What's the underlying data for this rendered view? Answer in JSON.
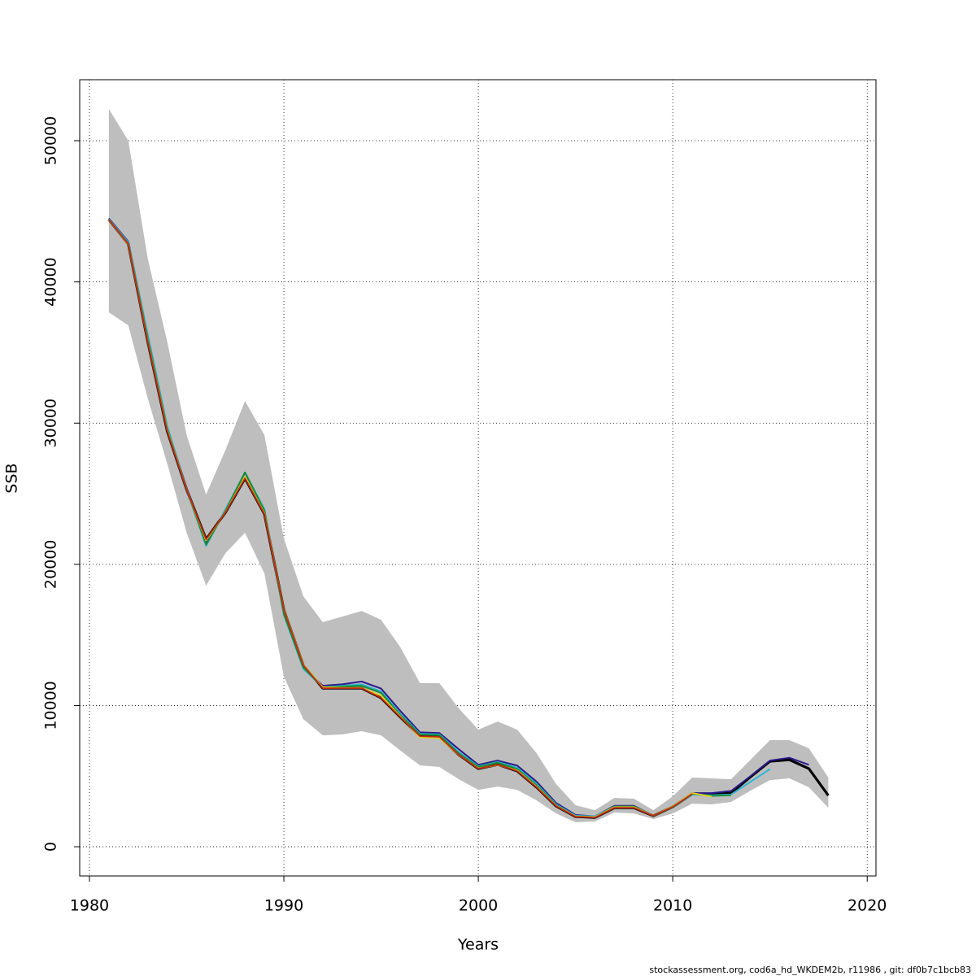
{
  "chart_data": {
    "type": "line",
    "x_label": "Years",
    "y_label": "SSB",
    "footnote": "stockassessment.org, cod6a_hd_WKDEM2b, r11986 , git: df0b7c1bcb83",
    "x": [
      1981,
      1982,
      1983,
      1984,
      1985,
      1986,
      1987,
      1988,
      1989,
      1990,
      1991,
      1992,
      1993,
      1994,
      1995,
      1996,
      1997,
      1998,
      1999,
      2000,
      2001,
      2002,
      2003,
      2004,
      2005,
      2006,
      2007,
      2008,
      2009,
      2010,
      2011,
      2012,
      2013,
      2014,
      2015,
      2016,
      2017,
      2018
    ],
    "band": {
      "color": "#bebebe",
      "upper": [
        52250,
        50000,
        41650,
        35770,
        29150,
        24940,
        28110,
        31570,
        29150,
        21830,
        17740,
        15900,
        16300,
        16700,
        16070,
        14110,
        11580,
        11580,
        9790,
        8290,
        8870,
        8290,
        6620,
        4440,
        2940,
        2590,
        3460,
        3400,
        2590,
        3570,
        4900,
        4840,
        4780,
        6160,
        7550,
        7550,
        6970,
        4900
      ],
      "lower": [
        37850,
        36920,
        31740,
        27130,
        22240,
        18490,
        20800,
        22240,
        19350,
        12040,
        9040,
        7890,
        7950,
        8180,
        7890,
        6800,
        5760,
        5650,
        4780,
        4030,
        4260,
        4030,
        3280,
        2360,
        1730,
        1790,
        2420,
        2360,
        1960,
        2360,
        3050,
        3000,
        3170,
        3970,
        4720,
        4840,
        4210,
        2760
      ]
    },
    "series": [
      {
        "color": "#000000",
        "values": [
          44410,
          42680,
          35770,
          29440,
          25290,
          21770,
          23680,
          26090,
          23560,
          16760,
          12850,
          11230,
          11230,
          11230,
          10540,
          9160,
          7830,
          7780,
          6510,
          5530,
          5820,
          5360,
          4210,
          2880,
          2130,
          2070,
          2760,
          2760,
          2190,
          2820,
          3740,
          3740,
          3800,
          4950,
          6050,
          6160,
          5530,
          3630
        ]
      },
      {
        "color": "#2a1a8a",
        "values": [
          44500,
          42850,
          36200,
          29700,
          25400,
          21500,
          23800,
          26500,
          23800,
          16500,
          12700,
          11400,
          11500,
          11700,
          11200,
          9600,
          8100,
          8050,
          6900,
          5800,
          6100,
          5750,
          4600,
          3100,
          2250,
          2150,
          2900,
          2900,
          2200,
          2850,
          3800,
          3800,
          3950,
          5000,
          6100,
          6300,
          5800,
          null
        ]
      },
      {
        "color": "#29b5d6",
        "values": [
          44450,
          42800,
          36300,
          29800,
          25300,
          21300,
          23900,
          26500,
          23900,
          16400,
          12600,
          11300,
          11400,
          11500,
          11000,
          9400,
          8000,
          7950,
          6700,
          5700,
          6000,
          5600,
          4450,
          3000,
          2200,
          2150,
          2850,
          2850,
          2200,
          2800,
          3700,
          3650,
          3700,
          4600,
          5500,
          null,
          null,
          null
        ]
      },
      {
        "color": "#1a8a3a",
        "values": [
          44400,
          42700,
          36000,
          29600,
          25300,
          21400,
          23800,
          26500,
          23800,
          16500,
          12700,
          11300,
          11350,
          11400,
          10900,
          9300,
          7950,
          7900,
          6600,
          5650,
          5950,
          5500,
          4350,
          2950,
          2150,
          2100,
          2850,
          2850,
          2180,
          2800,
          3750,
          3600,
          3650,
          null,
          null,
          null,
          null,
          null
        ]
      },
      {
        "color": "#e0d020",
        "values": [
          44400,
          42650,
          35800,
          29500,
          25300,
          21700,
          23700,
          26200,
          23600,
          16800,
          12900,
          11300,
          11250,
          11250,
          10700,
          9200,
          7750,
          7700,
          6500,
          5550,
          5800,
          5400,
          4250,
          2900,
          2150,
          2100,
          2800,
          2800,
          2200,
          2850,
          3800,
          3550,
          null,
          null,
          null,
          null,
          null,
          null
        ]
      },
      {
        "color": "#c0290f",
        "values": [
          44410,
          42680,
          35770,
          29440,
          25290,
          21770,
          23680,
          26090,
          23560,
          16760,
          12850,
          11230,
          11230,
          11230,
          10540,
          9160,
          7830,
          7780,
          6510,
          5530,
          5820,
          5360,
          4210,
          2880,
          2130,
          2070,
          2760,
          2760,
          2190,
          2820,
          3740,
          null,
          null,
          null,
          null,
          null,
          null,
          null
        ]
      }
    ],
    "xlim": [
      1979.5,
      2020.45
    ],
    "ylim": [
      -2070,
      54320
    ],
    "xticks": [
      1980,
      1990,
      2000,
      2010,
      2020
    ],
    "yticks": [
      0,
      10000,
      20000,
      30000,
      40000,
      50000
    ],
    "grid": true
  }
}
